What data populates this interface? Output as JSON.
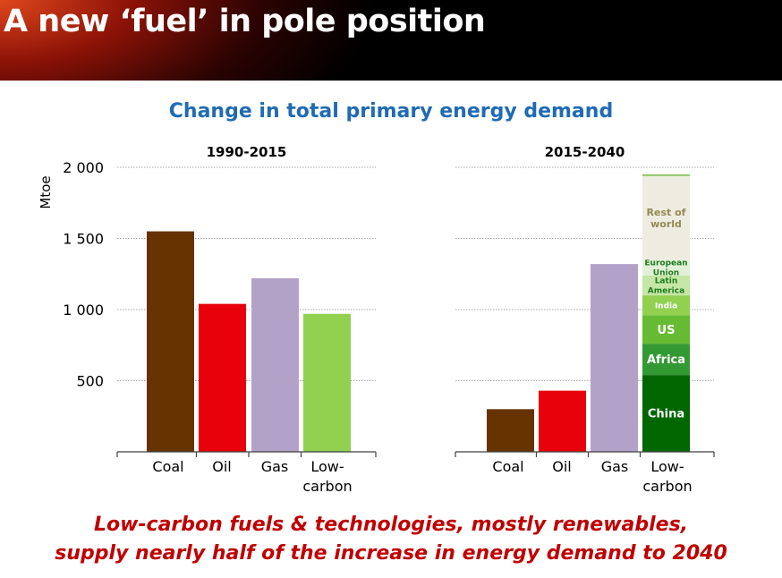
{
  "slide": {
    "title": "A new ‘fuel’ in pole position",
    "footer_line1": "Low-carbon fuels & technologies, mostly renewables,",
    "footer_line2": "supply nearly half of the increase in energy demand to 2040"
  },
  "chart_data": {
    "type": "bar",
    "title": "Change in total primary energy demand",
    "ylabel": "Mtoe",
    "ylim": [
      0,
      2000
    ],
    "yticks": [
      500,
      1000,
      1500,
      2000
    ],
    "ytick_labels": [
      "500",
      "1 000",
      "1 500",
      "2 000"
    ],
    "grid": true,
    "categories": [
      "Coal",
      "Oil",
      "Gas",
      "Low-carbon"
    ],
    "panels": [
      {
        "title": "1990-2015",
        "bars": [
          {
            "category": "Coal",
            "value": 1550,
            "color": "#663300"
          },
          {
            "category": "Oil",
            "value": 1040,
            "color": "#e8000b"
          },
          {
            "category": "Gas",
            "value": 1220,
            "color": "#b3a2c8"
          },
          {
            "category": "Low-carbon",
            "value": 970,
            "color": "#92d050"
          }
        ]
      },
      {
        "title": "2015-2040",
        "bars": [
          {
            "category": "Coal",
            "value": 300,
            "color": "#663300"
          },
          {
            "category": "Oil",
            "value": 430,
            "color": "#e8000b"
          },
          {
            "category": "Gas",
            "value": 1320,
            "color": "#b3a2c8"
          },
          {
            "category": "Low-carbon",
            "stacked": true,
            "segments": [
              {
                "label": "China",
                "value": 540,
                "color": "#006600",
                "text_color": "#ffffff"
              },
              {
                "label": "Africa",
                "value": 220,
                "color": "#339933",
                "text_color": "#ffffff"
              },
              {
                "label": "US",
                "value": 200,
                "color": "#66bb33",
                "text_color": "#ffffff"
              },
              {
                "label": "India",
                "value": 140,
                "color": "#92d050",
                "text_color": "#ffffff"
              },
              {
                "label": "Latin America",
                "value": 140,
                "color": "#c5e6a6",
                "text_color": "#1e7a1e"
              },
              {
                "label": "European Union",
                "value": 110,
                "color": "#e2f0d9",
                "text_color": "#1e7a1e"
              },
              {
                "label": "Rest of world",
                "value": 590,
                "color": "#eeece1",
                "text_color": "#948a54"
              },
              {
                "label": "",
                "value": 10,
                "color": "#79bd4a",
                "text_color": "#ffffff"
              }
            ]
          }
        ]
      }
    ]
  }
}
